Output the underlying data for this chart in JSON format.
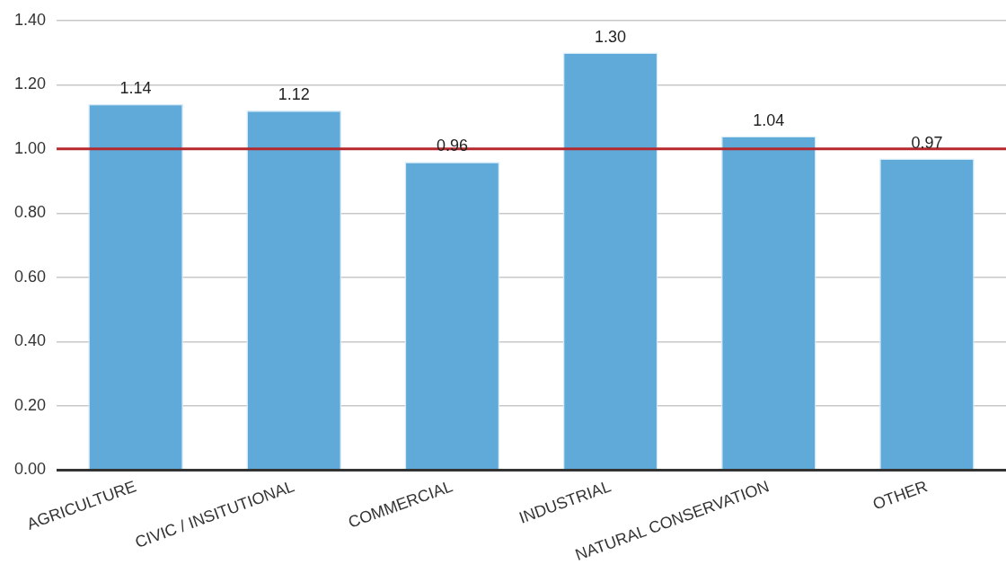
{
  "chart_data": {
    "type": "bar",
    "categories": [
      "AGRICULTURE",
      "CIVIC / INSITUTIONAL",
      "COMMERCIAL",
      "INDUSTRIAL",
      "NATURAL CONSERVATION",
      "OTHER"
    ],
    "values": [
      1.14,
      1.12,
      0.96,
      1.3,
      1.04,
      0.97
    ],
    "value_labels": [
      "1.14",
      "1.12",
      "0.96",
      "1.30",
      "1.04",
      "0.97"
    ],
    "color": "#5faad9",
    "ylim": [
      0,
      1.4
    ],
    "yticks": [
      {
        "value": 0,
        "label": "0.00"
      },
      {
        "value": 0.2,
        "label": "0.20"
      },
      {
        "value": 0.4,
        "label": "0.40"
      },
      {
        "value": 0.6,
        "label": "0.60"
      },
      {
        "value": 0.8,
        "label": "0.80"
      },
      {
        "value": 1,
        "label": "1.00"
      },
      {
        "value": 1.2,
        "label": "1.20"
      },
      {
        "value": 1.4,
        "label": "1.40"
      }
    ],
    "grid": "y",
    "legend": false,
    "ref_lines": [
      {
        "axis": "y",
        "value": 1,
        "color": "#b5282e"
      }
    ]
  }
}
